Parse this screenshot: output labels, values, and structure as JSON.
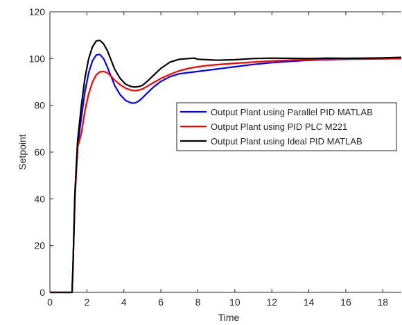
{
  "chart_data": {
    "type": "line",
    "title": "",
    "xlabel": "Time",
    "ylabel": "Setpoint",
    "xlim": [
      0,
      19
    ],
    "ylim": [
      0,
      120
    ],
    "xticks": [
      0,
      2,
      4,
      6,
      8,
      10,
      12,
      14,
      16,
      18
    ],
    "yticks": [
      0,
      20,
      40,
      60,
      80,
      100,
      120
    ],
    "grid": false,
    "legend_position": "right-middle",
    "series": [
      {
        "name": "Output Plant using Parallel PID MATLAB",
        "color": "#0000ff",
        "x": [
          0,
          1.2,
          1.25,
          1.35,
          1.5,
          1.7,
          1.9,
          2.1,
          2.3,
          2.5,
          2.7,
          2.9,
          3.1,
          3.3,
          3.5,
          3.8,
          4.1,
          4.4,
          4.6,
          4.8,
          5.0,
          5.3,
          5.6,
          6.0,
          6.5,
          7.0,
          7.5,
          8.0,
          8.5,
          9.0,
          9.5,
          10.0,
          11.0,
          12.0,
          13.0,
          14.0,
          15.0,
          16.0,
          17.0,
          18.0,
          19.0
        ],
        "y": [
          0,
          0,
          12,
          40,
          62,
          75,
          86,
          94,
          99,
          101.5,
          101.8,
          100,
          96.5,
          92.5,
          88.5,
          84.5,
          82,
          81,
          81,
          81.8,
          83.2,
          85.5,
          87.8,
          90.2,
          92.3,
          93.5,
          94,
          94.5,
          95,
          95.5,
          96,
          96.5,
          97.5,
          98.3,
          98.8,
          99.3,
          99.5,
          99.7,
          99.8,
          99.9,
          100
        ]
      },
      {
        "name": "Output Plant using PID PLC M221",
        "color": "#ff0000",
        "x": [
          0,
          1.2,
          1.25,
          1.35,
          1.5,
          1.7,
          1.9,
          2.1,
          2.3,
          2.5,
          2.7,
          2.9,
          3.1,
          3.3,
          3.5,
          3.8,
          4.1,
          4.4,
          4.6,
          4.8,
          5.0,
          5.3,
          5.6,
          6.0,
          6.5,
          7.0,
          7.5,
          8.0,
          8.5,
          9.0,
          10.0,
          11.0,
          12.0,
          13.0,
          14.0,
          15.0,
          16.0,
          17.0,
          18.0,
          19.0
        ],
        "y": [
          0,
          0,
          12,
          40,
          62,
          68,
          78,
          85,
          90,
          93,
          94.3,
          94.5,
          94,
          92.5,
          90.8,
          88.8,
          87.3,
          86.5,
          86.3,
          86.5,
          87,
          88.3,
          89.7,
          91.5,
          93.3,
          94.8,
          95.8,
          96.5,
          97,
          97.4,
          98,
          98.5,
          99,
          99.3,
          99.5,
          99.7,
          99.8,
          99.9,
          100,
          100
        ]
      },
      {
        "name": "Output Plant using Ideal PID MATLAB",
        "color": "#000000",
        "x": [
          0,
          1.2,
          1.25,
          1.35,
          1.5,
          1.7,
          1.9,
          2.1,
          2.3,
          2.5,
          2.7,
          2.9,
          3.1,
          3.3,
          3.5,
          3.8,
          4.1,
          4.4,
          4.6,
          4.8,
          5.0,
          5.3,
          5.6,
          6.0,
          6.5,
          7.0,
          7.5,
          7.8,
          8.0,
          8.5,
          9.0,
          10.0,
          11.0,
          12.0,
          13.0,
          14.0,
          15.0,
          16.0,
          17.0,
          18.0,
          19.0
        ],
        "y": [
          0,
          0,
          12,
          42,
          65,
          80,
          92,
          100,
          105,
          107.5,
          107.8,
          106.3,
          103.5,
          99.5,
          95.5,
          91.5,
          89,
          88,
          87.8,
          88,
          88.5,
          90.5,
          92.8,
          95.8,
          98.5,
          99.7,
          100,
          100.2,
          99.7,
          99.5,
          99.3,
          99.5,
          100,
          100.2,
          100.1,
          100,
          100.2,
          100.1,
          100.2,
          100.3,
          100.5
        ]
      }
    ]
  }
}
